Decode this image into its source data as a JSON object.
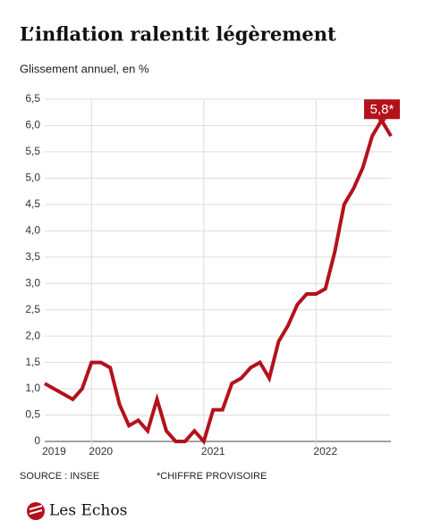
{
  "chart_data": {
    "type": "line",
    "title": "L’inflation ralentit légèrement",
    "subtitle": "Glissement annuel, en %",
    "source": "SOURCE : INSEE",
    "note": "*CHIFFRE PROVISOIRE",
    "brand": "Les Echos",
    "categories": [
      null,
      "2019",
      null,
      null,
      null,
      null,
      "2020",
      null,
      null,
      null,
      null,
      null,
      null,
      null,
      null,
      null,
      null,
      null,
      "2021",
      null,
      null,
      null,
      null,
      null,
      null,
      null,
      null,
      null,
      null,
      null,
      "2022",
      null,
      null,
      null,
      null,
      null,
      null,
      null
    ],
    "series": [
      {
        "name": "Inflation",
        "color": "#b3121c",
        "values": [
          1.1,
          1.0,
          0.9,
          0.8,
          1.0,
          1.5,
          1.5,
          1.4,
          0.7,
          0.3,
          0.4,
          0.2,
          0.8,
          0.2,
          0.0,
          0.0,
          0.2,
          0.0,
          0.6,
          0.6,
          1.1,
          1.2,
          1.4,
          1.5,
          1.2,
          1.9,
          2.2,
          2.6,
          2.8,
          2.8,
          2.9,
          3.6,
          4.5,
          4.8,
          5.2,
          5.8,
          6.1,
          5.8
        ],
        "value_labels": [
          null,
          null,
          null,
          null,
          null,
          null,
          null,
          null,
          null,
          null,
          null,
          null,
          null,
          null,
          null,
          null,
          null,
          null,
          null,
          null,
          null,
          null,
          null,
          null,
          null,
          null,
          null,
          null,
          null,
          null,
          null,
          null,
          null,
          null,
          null,
          null,
          null,
          "5,8*"
        ]
      }
    ],
    "ylim": [
      0,
      6.5
    ],
    "yticks": [
      0,
      {
        "value": 0.5,
        "label": "0,5"
      },
      {
        "value": 1,
        "label": "1,0"
      },
      {
        "value": 1.5,
        "label": "1,5"
      },
      {
        "value": 2,
        "label": "2,0"
      },
      {
        "value": 2.5,
        "label": "2,5"
      },
      {
        "value": 3,
        "label": "3,0"
      },
      {
        "value": 3.5,
        "label": "3,5"
      },
      {
        "value": 4,
        "label": "4,0"
      },
      {
        "value": 4.5,
        "label": "4,5"
      },
      {
        "value": 5,
        "label": "5,0"
      },
      {
        "value": 5.5,
        "label": "5,5"
      },
      {
        "value": 6,
        "label": "6,0"
      },
      {
        "value": 6.5,
        "label": "6,5"
      }
    ],
    "grid": true
  }
}
